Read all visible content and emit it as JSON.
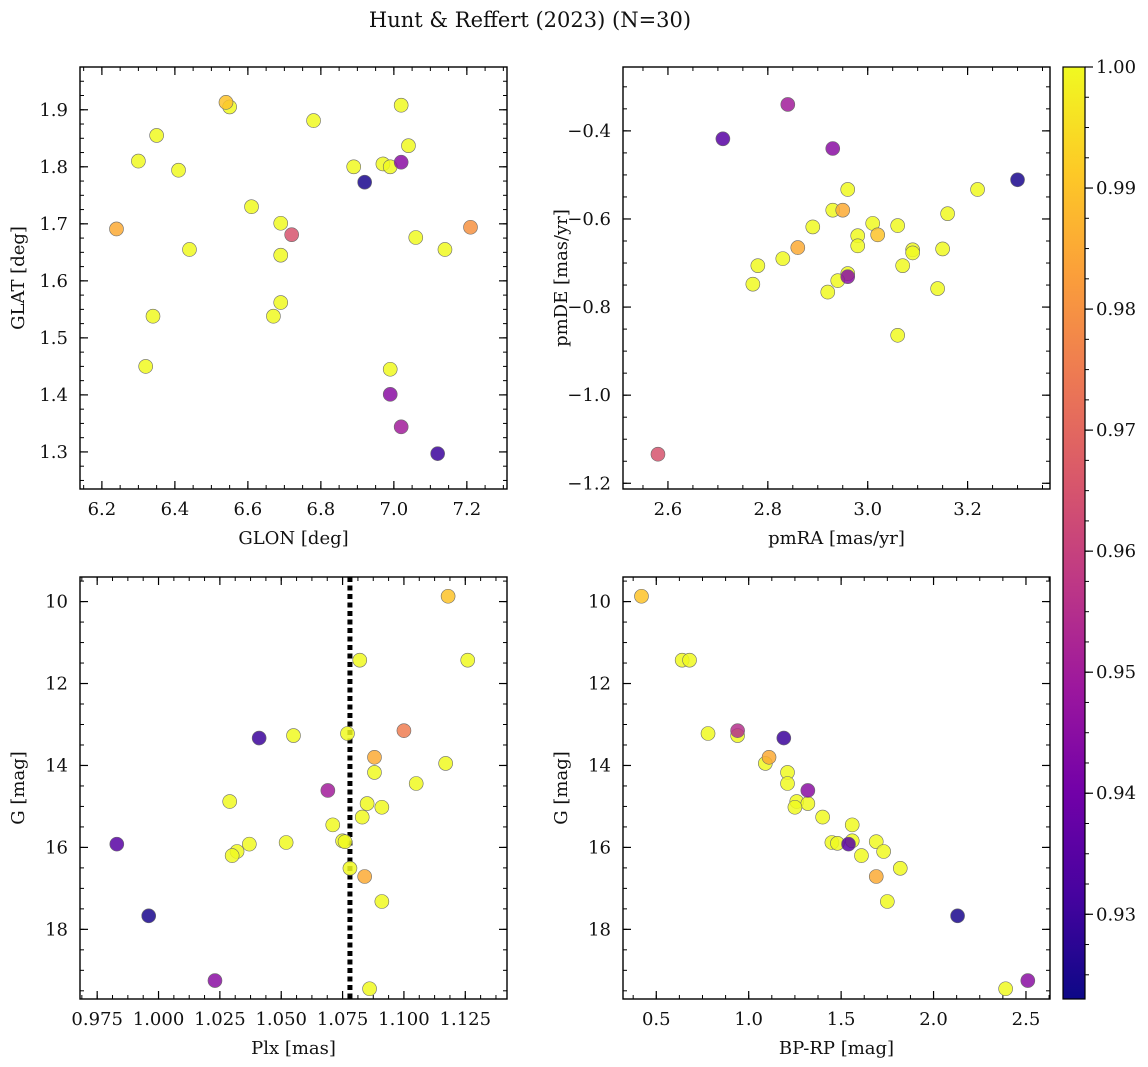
{
  "figure": {
    "title": "Hunt & Reffert (2023) (N=30)"
  },
  "colorbar": {
    "range": [
      0.923,
      1.0
    ],
    "ticks": [
      0.93,
      0.94,
      0.95,
      0.96,
      0.97,
      0.98,
      0.99,
      1.0
    ],
    "tick_labels": [
      "0.93",
      "0.94",
      "0.95",
      "0.96",
      "0.97",
      "0.98",
      "0.99",
      "1.00"
    ],
    "colormap": "plasma",
    "stops": [
      "#0d0887",
      "#46039f",
      "#7201a8",
      "#9c179e",
      "#bd3786",
      "#d8576b",
      "#ed7953",
      "#fb9f3a",
      "#fdca26",
      "#f0f921"
    ]
  },
  "chart_data": [
    {
      "type": "scatter",
      "xlabel": "GLON [deg]",
      "ylabel": "GLAT [deg]",
      "xlim": [
        6.14,
        7.31
      ],
      "ylim": [
        1.235,
        1.975
      ],
      "y_inverted": false,
      "xticks": [
        6.2,
        6.4,
        6.6,
        6.8,
        7.0,
        7.2
      ],
      "xtick_labels": [
        "6.2",
        "6.4",
        "6.6",
        "6.8",
        "7.0",
        "7.2"
      ],
      "yticks": [
        1.3,
        1.4,
        1.5,
        1.6,
        1.7,
        1.8,
        1.9
      ],
      "ytick_labels": [
        "1.3",
        "1.4",
        "1.5",
        "1.6",
        "1.7",
        "1.8",
        "1.9"
      ],
      "points": [
        {
          "x": 6.54,
          "y": 1.913,
          "c": 0.99
        },
        {
          "x": 6.55,
          "y": 1.905,
          "c": 1.0
        },
        {
          "x": 7.02,
          "y": 1.908,
          "c": 1.0
        },
        {
          "x": 6.35,
          "y": 1.855,
          "c": 1.0
        },
        {
          "x": 6.78,
          "y": 1.881,
          "c": 1.0
        },
        {
          "x": 7.04,
          "y": 1.837,
          "c": 1.0
        },
        {
          "x": 6.3,
          "y": 1.81,
          "c": 1.0
        },
        {
          "x": 6.41,
          "y": 1.794,
          "c": 1.0
        },
        {
          "x": 6.89,
          "y": 1.8,
          "c": 1.0
        },
        {
          "x": 6.97,
          "y": 1.805,
          "c": 1.0
        },
        {
          "x": 6.99,
          "y": 1.8,
          "c": 1.0
        },
        {
          "x": 7.02,
          "y": 1.808,
          "c": 0.945
        },
        {
          "x": 6.92,
          "y": 1.773,
          "c": 0.925
        },
        {
          "x": 6.61,
          "y": 1.73,
          "c": 1.0
        },
        {
          "x": 6.69,
          "y": 1.701,
          "c": 1.0
        },
        {
          "x": 6.24,
          "y": 1.691,
          "c": 0.985
        },
        {
          "x": 6.72,
          "y": 1.681,
          "c": 0.965
        },
        {
          "x": 7.06,
          "y": 1.676,
          "c": 1.0
        },
        {
          "x": 7.21,
          "y": 1.694,
          "c": 0.98
        },
        {
          "x": 6.44,
          "y": 1.655,
          "c": 1.0
        },
        {
          "x": 7.14,
          "y": 1.655,
          "c": 1.0
        },
        {
          "x": 6.69,
          "y": 1.645,
          "c": 1.0
        },
        {
          "x": 6.69,
          "y": 1.562,
          "c": 1.0
        },
        {
          "x": 6.34,
          "y": 1.538,
          "c": 1.0
        },
        {
          "x": 6.67,
          "y": 1.538,
          "c": 1.0
        },
        {
          "x": 6.32,
          "y": 1.45,
          "c": 1.0
        },
        {
          "x": 6.99,
          "y": 1.445,
          "c": 1.0
        },
        {
          "x": 6.99,
          "y": 1.401,
          "c": 0.945
        },
        {
          "x": 7.02,
          "y": 1.344,
          "c": 0.95
        },
        {
          "x": 7.12,
          "y": 1.297,
          "c": 0.93
        }
      ]
    },
    {
      "type": "scatter",
      "xlabel": "pmRA [mas/yr]",
      "ylabel": "pmDE [mas/yr]",
      "xlim": [
        2.51,
        3.365
      ],
      "ylim": [
        -1.213,
        -0.255
      ],
      "y_inverted": false,
      "xticks": [
        2.6,
        2.8,
        3.0,
        3.2
      ],
      "xtick_labels": [
        "2.6",
        "2.8",
        "3.0",
        "3.2"
      ],
      "yticks": [
        -1.2,
        -1.0,
        -0.8,
        -0.6,
        -0.4
      ],
      "ytick_labels": [
        "−1.2",
        "−1.0",
        "−0.8",
        "−0.6",
        "−0.4"
      ],
      "points": [
        {
          "x": 2.84,
          "y": -0.34,
          "c": 0.95
        },
        {
          "x": 2.71,
          "y": -0.418,
          "c": 0.935
        },
        {
          "x": 2.93,
          "y": -0.44,
          "c": 0.945
        },
        {
          "x": 3.3,
          "y": -0.511,
          "c": 0.925
        },
        {
          "x": 2.96,
          "y": -0.533,
          "c": 1.0
        },
        {
          "x": 3.22,
          "y": -0.533,
          "c": 1.0
        },
        {
          "x": 2.93,
          "y": -0.58,
          "c": 1.0
        },
        {
          "x": 2.95,
          "y": -0.58,
          "c": 0.985
        },
        {
          "x": 3.16,
          "y": -0.588,
          "c": 1.0
        },
        {
          "x": 3.01,
          "y": -0.61,
          "c": 1.0
        },
        {
          "x": 3.06,
          "y": -0.615,
          "c": 1.0
        },
        {
          "x": 2.89,
          "y": -0.618,
          "c": 1.0
        },
        {
          "x": 3.02,
          "y": -0.636,
          "c": 0.99
        },
        {
          "x": 2.98,
          "y": -0.638,
          "c": 1.0
        },
        {
          "x": 2.98,
          "y": -0.661,
          "c": 1.0
        },
        {
          "x": 2.86,
          "y": -0.665,
          "c": 0.985
        },
        {
          "x": 3.15,
          "y": -0.668,
          "c": 1.0
        },
        {
          "x": 3.09,
          "y": -0.67,
          "c": 1.0
        },
        {
          "x": 3.09,
          "y": -0.677,
          "c": 1.0
        },
        {
          "x": 2.83,
          "y": -0.69,
          "c": 1.0
        },
        {
          "x": 2.78,
          "y": -0.706,
          "c": 1.0
        },
        {
          "x": 3.07,
          "y": -0.706,
          "c": 1.0
        },
        {
          "x": 2.96,
          "y": -0.731,
          "c": 0.945
        },
        {
          "x": 2.96,
          "y": -0.724,
          "c": 1.0
        },
        {
          "x": 2.94,
          "y": -0.74,
          "c": 1.0
        },
        {
          "x": 2.77,
          "y": -0.748,
          "c": 1.0
        },
        {
          "x": 3.14,
          "y": -0.758,
          "c": 1.0
        },
        {
          "x": 2.92,
          "y": -0.766,
          "c": 1.0
        },
        {
          "x": 3.06,
          "y": -0.864,
          "c": 1.0
        },
        {
          "x": 2.58,
          "y": -1.134,
          "c": 0.965
        }
      ]
    },
    {
      "type": "scatter",
      "xlabel": "Plx [mas]",
      "ylabel": "G [mag]",
      "xlim": [
        0.968,
        1.142
      ],
      "ylim": [
        19.7,
        9.4
      ],
      "y_inverted": true,
      "vline": {
        "x": 1.078,
        "style": "dotted"
      },
      "xticks": [
        0.975,
        1.0,
        1.025,
        1.05,
        1.075,
        1.1,
        1.125
      ],
      "xtick_labels": [
        "0.975",
        "1.000",
        "1.025",
        "1.050",
        "1.075",
        "1.100",
        "1.125"
      ],
      "yticks": [
        10,
        12,
        14,
        16,
        18
      ],
      "ytick_labels": [
        "10",
        "12",
        "14",
        "16",
        "18"
      ],
      "points": [
        {
          "x": 1.118,
          "y": 9.87,
          "c": 0.99
        },
        {
          "x": 1.082,
          "y": 11.43,
          "c": 1.0
        },
        {
          "x": 1.126,
          "y": 11.43,
          "c": 1.0
        },
        {
          "x": 1.1,
          "y": 13.15,
          "c": 0.975
        },
        {
          "x": 1.077,
          "y": 13.22,
          "c": 1.0
        },
        {
          "x": 1.055,
          "y": 13.27,
          "c": 1.0
        },
        {
          "x": 1.041,
          "y": 13.33,
          "c": 0.93
        },
        {
          "x": 1.088,
          "y": 13.8,
          "c": 0.985
        },
        {
          "x": 1.117,
          "y": 13.95,
          "c": 1.0
        },
        {
          "x": 1.088,
          "y": 14.17,
          "c": 1.0
        },
        {
          "x": 1.105,
          "y": 14.44,
          "c": 1.0
        },
        {
          "x": 1.069,
          "y": 14.61,
          "c": 0.95
        },
        {
          "x": 1.029,
          "y": 14.88,
          "c": 1.0
        },
        {
          "x": 1.085,
          "y": 14.93,
          "c": 1.0
        },
        {
          "x": 1.091,
          "y": 15.02,
          "c": 1.0
        },
        {
          "x": 1.083,
          "y": 15.26,
          "c": 1.0
        },
        {
          "x": 1.071,
          "y": 15.45,
          "c": 1.0
        },
        {
          "x": 1.075,
          "y": 15.84,
          "c": 1.0
        },
        {
          "x": 1.052,
          "y": 15.88,
          "c": 1.0
        },
        {
          "x": 1.037,
          "y": 15.92,
          "c": 1.0
        },
        {
          "x": 0.983,
          "y": 15.92,
          "c": 0.935
        },
        {
          "x": 1.076,
          "y": 15.86,
          "c": 1.0
        },
        {
          "x": 1.032,
          "y": 16.1,
          "c": 1.0
        },
        {
          "x": 1.03,
          "y": 16.2,
          "c": 1.0
        },
        {
          "x": 1.078,
          "y": 16.51,
          "c": 1.0
        },
        {
          "x": 1.084,
          "y": 16.71,
          "c": 0.985
        },
        {
          "x": 1.091,
          "y": 17.32,
          "c": 1.0
        },
        {
          "x": 0.996,
          "y": 17.67,
          "c": 0.925
        },
        {
          "x": 1.023,
          "y": 19.25,
          "c": 0.945
        },
        {
          "x": 1.086,
          "y": 19.45,
          "c": 1.0
        }
      ]
    },
    {
      "type": "scatter",
      "xlabel": "BP-RP [mag]",
      "ylabel": "G [mag]",
      "xlim": [
        0.32,
        2.63
      ],
      "ylim": [
        19.7,
        9.4
      ],
      "y_inverted": true,
      "xticks": [
        0.5,
        1.0,
        1.5,
        2.0,
        2.5
      ],
      "xtick_labels": [
        "0.5",
        "1.0",
        "1.5",
        "2.0",
        "2.5"
      ],
      "yticks": [
        10,
        12,
        14,
        16,
        18
      ],
      "ytick_labels": [
        "10",
        "12",
        "14",
        "16",
        "18"
      ],
      "points": [
        {
          "x": 0.42,
          "y": 9.87,
          "c": 0.99
        },
        {
          "x": 0.64,
          "y": 11.43,
          "c": 1.0
        },
        {
          "x": 0.68,
          "y": 11.43,
          "c": 1.0
        },
        {
          "x": 0.94,
          "y": 13.15,
          "c": 0.955
        },
        {
          "x": 0.78,
          "y": 13.22,
          "c": 1.0
        },
        {
          "x": 0.94,
          "y": 13.27,
          "c": 1.0
        },
        {
          "x": 1.19,
          "y": 13.33,
          "c": 0.93
        },
        {
          "x": 1.11,
          "y": 13.8,
          "c": 0.985
        },
        {
          "x": 1.09,
          "y": 13.95,
          "c": 1.0
        },
        {
          "x": 1.21,
          "y": 14.17,
          "c": 1.0
        },
        {
          "x": 1.21,
          "y": 14.44,
          "c": 1.0
        },
        {
          "x": 1.32,
          "y": 14.61,
          "c": 0.945
        },
        {
          "x": 1.26,
          "y": 14.88,
          "c": 1.0
        },
        {
          "x": 1.32,
          "y": 14.93,
          "c": 1.0
        },
        {
          "x": 1.25,
          "y": 15.02,
          "c": 1.0
        },
        {
          "x": 1.4,
          "y": 15.26,
          "c": 1.0
        },
        {
          "x": 1.56,
          "y": 15.45,
          "c": 1.0
        },
        {
          "x": 1.56,
          "y": 15.84,
          "c": 1.0
        },
        {
          "x": 1.45,
          "y": 15.88,
          "c": 1.0
        },
        {
          "x": 1.48,
          "y": 15.9,
          "c": 1.0
        },
        {
          "x": 1.54,
          "y": 15.92,
          "c": 0.935
        },
        {
          "x": 1.69,
          "y": 15.86,
          "c": 1.0
        },
        {
          "x": 1.73,
          "y": 16.1,
          "c": 1.0
        },
        {
          "x": 1.61,
          "y": 16.2,
          "c": 1.0
        },
        {
          "x": 1.82,
          "y": 16.51,
          "c": 1.0
        },
        {
          "x": 1.69,
          "y": 16.71,
          "c": 0.985
        },
        {
          "x": 1.75,
          "y": 17.32,
          "c": 1.0
        },
        {
          "x": 2.13,
          "y": 17.67,
          "c": 0.925
        },
        {
          "x": 2.51,
          "y": 19.25,
          "c": 0.945
        },
        {
          "x": 2.39,
          "y": 19.45,
          "c": 1.0
        }
      ]
    }
  ]
}
